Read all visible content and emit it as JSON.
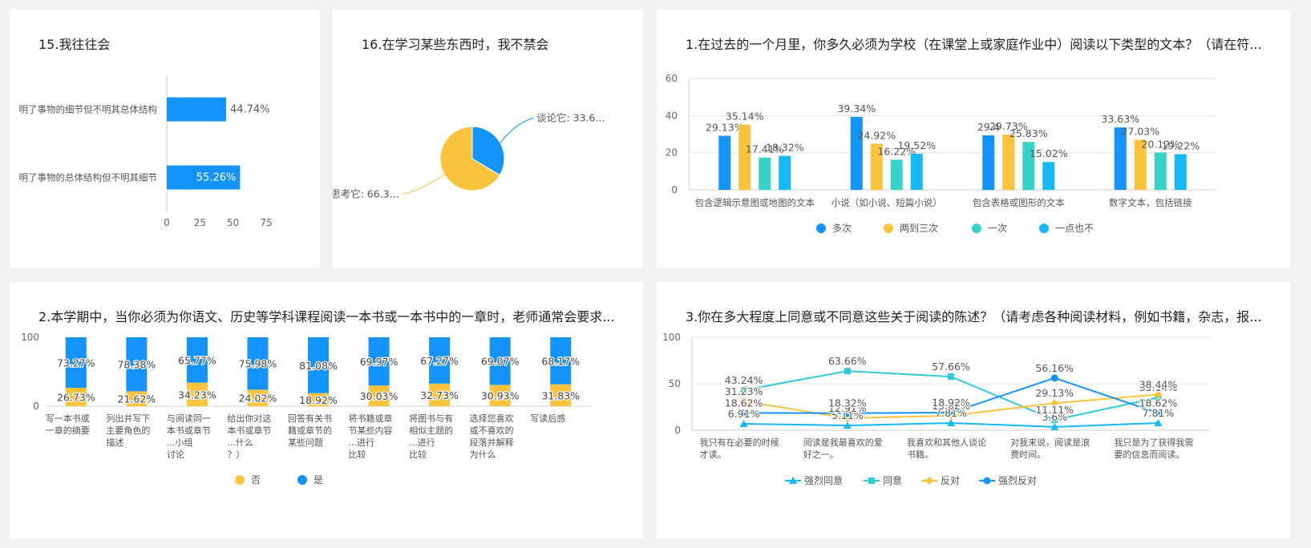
{
  "colors": {
    "blue": "#1493fa",
    "yellow": "#fbc43d",
    "teal": "#36d4c7",
    "cyan": "#16b8f5",
    "line_teal": "#2fccd6"
  },
  "chart_data": [
    {
      "id": "c1",
      "type": "bar",
      "orientation": "horizontal",
      "title": "15.我往往会",
      "categories": [
        "明了事物的细节但不明其总体结构",
        "明了事物的总体结构但不明其细节"
      ],
      "values": [
        44.74,
        55.26
      ],
      "value_labels": [
        "44.74%",
        "55.26%"
      ],
      "xlim": [
        0,
        75
      ],
      "xticks": [
        0,
        25,
        50,
        75
      ],
      "xtick_labels": [
        "0",
        "25",
        "50",
        "75"
      ],
      "colors": [
        "#1493fa"
      ]
    },
    {
      "id": "c2",
      "type": "pie",
      "title": "16.在学习某些东西时，我不禁会",
      "slices": [
        {
          "label": "谈论它: 33.6...",
          "value": 33.63,
          "color": "#1493fa"
        },
        {
          "label": "思考它: 66.3...",
          "value": 66.37,
          "color": "#fbc43d"
        }
      ]
    },
    {
      "id": "c3",
      "type": "bar",
      "title": "1.在过去的一个月里，你多久必须为学校（在课堂上或家庭作业中）阅读以下类型的文本？（请在符...",
      "categories": [
        "包含逻辑示意图或地图的文本",
        "小说（如小说、短篇小说）",
        "包含表格或图形的文本",
        "数字文本，包括链接"
      ],
      "series": [
        {
          "name": "多次",
          "color": "#1493fa",
          "values": [
            29.13,
            39.34,
            29.4,
            33.63
          ],
          "labels": [
            "29.13%",
            "39.34%",
            "29.4",
            "33.63%"
          ]
        },
        {
          "name": "两到三次",
          "color": "#fbc43d",
          "values": [
            35.14,
            24.92,
            29.73,
            27.03
          ],
          "labels": [
            "35.14%",
            "24.92%",
            "29.73%",
            "27.03%"
          ]
        },
        {
          "name": "一次",
          "color": "#36d4c7",
          "values": [
            17.41,
            16.22,
            25.83,
            20.12
          ],
          "labels": [
            "17.41%",
            "16.22%",
            "25.83%",
            "20.12%"
          ]
        },
        {
          "name": "一点也不",
          "color": "#16b8f5",
          "values": [
            18.32,
            19.52,
            15.02,
            19.22
          ],
          "labels": [
            "18.32%",
            "19.52%",
            "15.02%",
            "19.22%"
          ]
        }
      ],
      "ylim": [
        0,
        60
      ],
      "yticks": [
        0,
        20,
        40,
        60
      ],
      "ytick_labels": [
        "0",
        "20",
        "40",
        "60"
      ]
    },
    {
      "id": "c4",
      "type": "bar",
      "stacked": true,
      "title": "2.本学期中，当你必须为你语文、历史等学科课程阅读一本书或一本书中的一章时，老师通常会要求...",
      "categories": [
        [
          "写一本书或",
          "一章的摘要"
        ],
        [
          "列出并写下",
          "主要角色的",
          "描述"
        ],
        [
          "与阅读同一",
          "本书或章节",
          "...小组",
          "讨论"
        ],
        [
          "给出你对这",
          "本书或章节",
          "...什么",
          "？）"
        ],
        [
          "回答有关书",
          "籍或章节的",
          "某些问题"
        ],
        [
          "将书籍或章",
          "节某些内容",
          "...进行",
          "比较"
        ],
        [
          "将图书与有",
          "相似主题的",
          "...进行",
          "比较"
        ],
        [
          "选择您喜欢",
          "或不喜欢的",
          "段落并解释",
          "为什么"
        ],
        [
          "写读后感"
        ]
      ],
      "series": [
        {
          "name": "否",
          "color": "#fbc43d",
          "values": [
            26.73,
            21.62,
            34.23,
            24.02,
            18.92,
            30.03,
            32.73,
            30.93,
            31.83
          ],
          "labels": [
            "26.73%",
            "21.62%",
            "34.23%",
            "24.02%",
            "18.92%",
            "30.03%",
            "32.73%",
            "30.93%",
            "31.83%"
          ]
        },
        {
          "name": "是",
          "color": "#1493fa",
          "values": [
            73.27,
            78.38,
            65.77,
            75.98,
            81.08,
            69.97,
            67.27,
            69.07,
            68.17
          ],
          "labels": [
            "73.27%",
            "78.38%",
            "65.77%",
            "75.98%",
            "81.08%",
            "69.97%",
            "67.27%",
            "69.07%",
            "68.17%"
          ]
        }
      ],
      "ylim": [
        0,
        100
      ],
      "yticks": [
        0,
        100
      ],
      "ytick_labels": [
        "0",
        "100"
      ]
    },
    {
      "id": "c5",
      "type": "line",
      "title": "3.你在多大程度上同意或不同意这些关于阅读的陈述？（请考虑各种阅读材料，例如书籍，杂志，报...",
      "categories": [
        [
          "我只有在必要的时候",
          "才读。"
        ],
        [
          "阅读是我最喜欢的爱",
          "好之一。"
        ],
        [
          "我喜欢和其他人谈论",
          "书籍。"
        ],
        [
          "对我来说，阅读是浪",
          "费时间。"
        ],
        [
          "我只是为了获得我需",
          "要的信息而阅读。"
        ]
      ],
      "series": [
        {
          "name": "强烈同意",
          "color": "#16b8f5",
          "marker": "triangle",
          "values": [
            6.91,
            5.11,
            7.81,
            3.6,
            7.81
          ],
          "labels": [
            "6.91%",
            "5.11%",
            "7.81%",
            "3.6%",
            "7.81%"
          ]
        },
        {
          "name": "同意",
          "color": "#2fccd6",
          "marker": "square",
          "values": [
            43.24,
            63.66,
            57.66,
            11.11,
            35.14
          ],
          "labels": [
            "43.24%",
            "63.66%",
            "57.66%",
            "11.11%",
            "35.14%"
          ]
        },
        {
          "name": "反对",
          "color": "#fbc43d",
          "marker": "diamond",
          "values": [
            31.23,
            12.91,
            15.62,
            29.13,
            38.44
          ],
          "labels": [
            "31.23%",
            "12.91%",
            "15.62%",
            "29.13%",
            "38.44%"
          ]
        },
        {
          "name": "强烈反对",
          "color": "#1493fa",
          "marker": "circle",
          "values": [
            18.62,
            18.32,
            18.92,
            56.16,
            18.62
          ],
          "labels": [
            "18.62%",
            "18.32%",
            "18.92%",
            "56.16%",
            "18.62%"
          ]
        }
      ],
      "ylim": [
        0,
        100
      ],
      "yticks": [
        0,
        50,
        100
      ],
      "ytick_labels": [
        "0",
        "50",
        "100"
      ]
    }
  ]
}
